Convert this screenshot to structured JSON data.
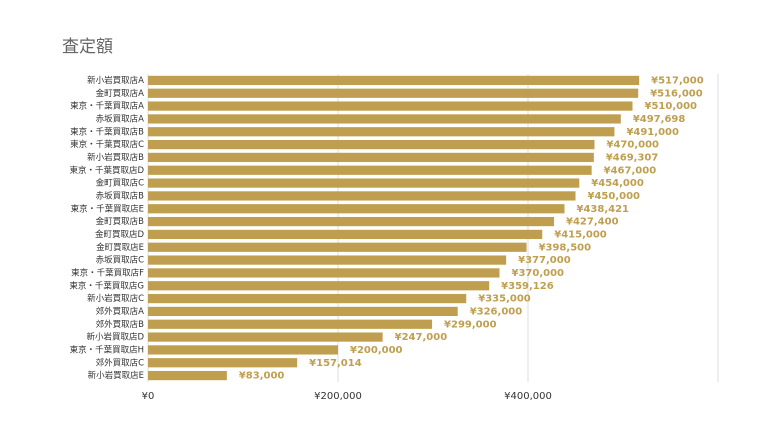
{
  "chart_data": {
    "type": "bar",
    "orientation": "horizontal",
    "title": "査定額",
    "categories": [
      "新小岩買取店A",
      "金町買取店A",
      "東京・千葉買取店A",
      "赤坂買取店A",
      "東京・千葉買取店B",
      "東京・千葉買取店C",
      "新小岩買取店B",
      "東京・千葉買取店D",
      "金町買取店C",
      "赤坂買取店B",
      "東京・千葉買取店E",
      "金町買取店B",
      "金町買取店D",
      "金町買取店E",
      "赤坂買取店C",
      "東京・千葉買取店F",
      "東京・千葉買取店G",
      "新小岩買取店C",
      "郊外買取店A",
      "郊外買取店B",
      "新小岩買取店D",
      "東京・千葉買取店H",
      "郊外買取店C",
      "新小岩買取店E"
    ],
    "values": [
      517000,
      516000,
      510000,
      497698,
      491000,
      470000,
      469307,
      467000,
      454000,
      450000,
      438421,
      427400,
      415000,
      398500,
      377000,
      370000,
      359126,
      335000,
      326000,
      299000,
      247000,
      200000,
      157014,
      83000
    ],
    "value_labels": [
      "¥517,000",
      "¥516,000",
      "¥510,000",
      "¥497,698",
      "¥491,000",
      "¥470,000",
      "¥469,307",
      "¥467,000",
      "¥454,000",
      "¥450,000",
      "¥438,421",
      "¥427,400",
      "¥415,000",
      "¥398,500",
      "¥377,000",
      "¥370,000",
      "¥359,126",
      "¥335,000",
      "¥326,000",
      "¥299,000",
      "¥247,000",
      "¥200,000",
      "¥157,014",
      "¥83,000"
    ],
    "color": "#bf9f4f",
    "xlim": [
      0,
      600000
    ],
    "xticks": [
      {
        "value": 0,
        "label": "¥0"
      },
      {
        "value": 200000,
        "label": "¥200,000"
      },
      {
        "value": 400000,
        "label": "¥400,000"
      }
    ],
    "grid": true
  }
}
